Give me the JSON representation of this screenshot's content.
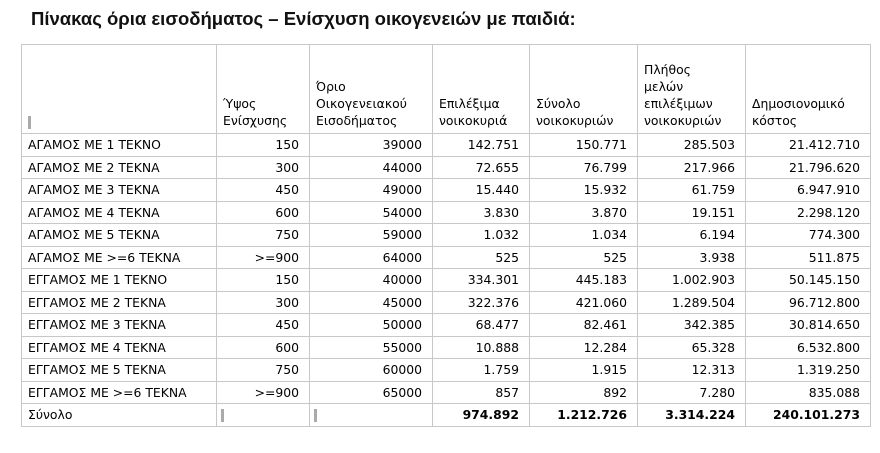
{
  "title": "Πίνακας όρια εισοδήματος – Ενίσχυση οικογενειών με παιδιά:",
  "table": {
    "headers": [
      "",
      "Ύψος\nΕνίσχυσης",
      "Όριο\nΟικογενειακού\nΕισοδήματος",
      "Επιλέξιμα\nνοικοκυριά",
      "Σύνολο\nνοικοκυριών",
      "Πλήθος\nμελών\nεπιλέξιμων\nνοικοκυριών",
      "Δημοσιονομικό\nκόστος"
    ],
    "rows": [
      [
        "ΑΓΑΜΟΣ ΜΕ 1 ΤΕΚΝΟ",
        "150",
        "39000",
        "142.751",
        "150.771",
        "285.503",
        "21.412.710"
      ],
      [
        "ΑΓΑΜΟΣ ΜΕ 2 ΤΕΚΝΑ",
        "300",
        "44000",
        "72.655",
        "76.799",
        "217.966",
        "21.796.620"
      ],
      [
        "ΑΓΑΜΟΣ ΜΕ 3 ΤΕΚΝΑ",
        "450",
        "49000",
        "15.440",
        "15.932",
        "61.759",
        "6.947.910"
      ],
      [
        "ΑΓΑΜΟΣ ΜΕ 4 ΤΕΚΝΑ",
        "600",
        "54000",
        "3.830",
        "3.870",
        "19.151",
        "2.298.120"
      ],
      [
        "ΑΓΑΜΟΣ ΜΕ 5 ΤΕΚΝΑ",
        "750",
        "59000",
        "1.032",
        "1.034",
        "6.194",
        "774.300"
      ],
      [
        "ΑΓΑΜΟΣ ΜΕ >=6 ΤΕΚΝΑ",
        ">=900",
        "64000",
        "525",
        "525",
        "3.938",
        "511.875"
      ],
      [
        "ΕΓΓΑΜΟΣ ΜΕ 1 ΤΕΚΝΟ",
        "150",
        "40000",
        "334.301",
        "445.183",
        "1.002.903",
        "50.145.150"
      ],
      [
        "ΕΓΓΑΜΟΣ ΜΕ 2 ΤΕΚΝΑ",
        "300",
        "45000",
        "322.376",
        "421.060",
        "1.289.504",
        "96.712.800"
      ],
      [
        "ΕΓΓΑΜΟΣ ΜΕ 3 ΤΕΚΝΑ",
        "450",
        "50000",
        "68.477",
        "82.461",
        "342.385",
        "30.814.650"
      ],
      [
        "ΕΓΓΑΜΟΣ ΜΕ 4 ΤΕΚΝΑ",
        "600",
        "55000",
        "10.888",
        "12.284",
        "65.328",
        "6.532.800"
      ],
      [
        "ΕΓΓΑΜΟΣ ΜΕ 5 ΤΕΚΝΑ",
        "750",
        "60000",
        "1.759",
        "1.915",
        "12.313",
        "1.319.250"
      ],
      [
        "ΕΓΓΑΜΟΣ ΜΕ >=6 ΤΕΚΝΑ",
        ">=900",
        "65000",
        "857",
        "892",
        "7.280",
        "835.088"
      ]
    ],
    "total": [
      "Σύνολο",
      "",
      "",
      "974.892",
      "1.212.726",
      "3.314.224",
      "240.101.273"
    ]
  }
}
